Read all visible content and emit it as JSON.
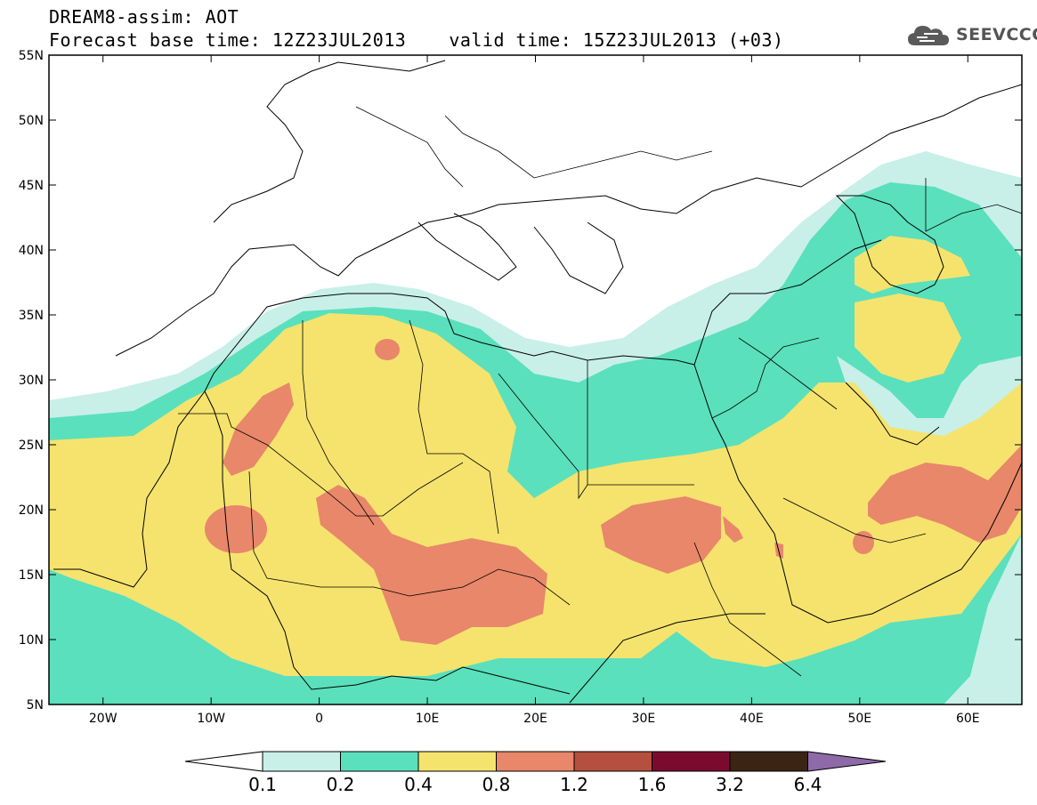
{
  "title": {
    "line1": "DREAM8-assim: AOT",
    "base_time": "Forecast base time: 12Z23JUL2013",
    "valid_time": "valid time: 15Z23JUL2013 (+03)"
  },
  "logo": {
    "text": "SEEVCCC",
    "icon": "cloud-icon"
  },
  "map": {
    "lat_labels": [
      "55N",
      "50N",
      "45N",
      "40N",
      "35N",
      "30N",
      "25N",
      "20N",
      "15N",
      "10N",
      "5N"
    ],
    "lon_labels": [
      "20W",
      "10W",
      "0",
      "10E",
      "20E",
      "30E",
      "40E",
      "50E",
      "60E"
    ],
    "lat_range": [
      5,
      55
    ],
    "lon_range": [
      -25,
      65
    ]
  },
  "colorbar": {
    "ticks": [
      "0.1",
      "0.2",
      "0.4",
      "0.8",
      "1.2",
      "1.6",
      "3.2",
      "6.4"
    ],
    "colors": [
      "#ffffff",
      "#c8f0e8",
      "#5ae0bc",
      "#f5e36e",
      "#e8876a",
      "#b54f3e",
      "#7a0a2e",
      "#3b2414",
      "#8e6aa9"
    ]
  }
}
